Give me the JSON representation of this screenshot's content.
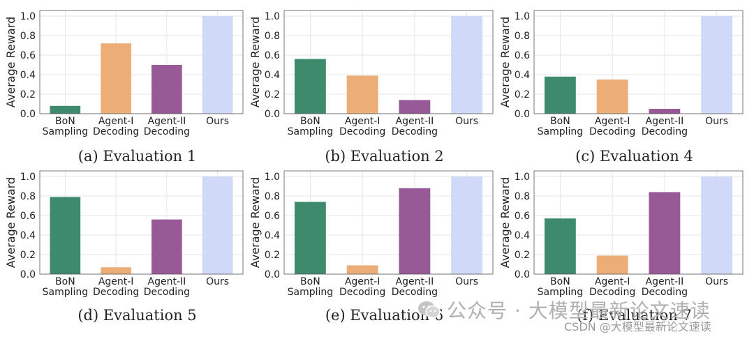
{
  "colors": {
    "bon": "#3d8a6c",
    "agent1": "#ecad76",
    "agent2": "#985a96",
    "ours": "#d1d9f8",
    "grid": "#e6e6e6",
    "axis": "#555555",
    "text": "#222222"
  },
  "chart_data": [
    {
      "type": "bar",
      "caption": "(a) Evaluation 1",
      "ylabel": "Average Reward",
      "ylim": [
        0,
        1.0
      ],
      "yticks": [
        "0.0",
        "0.2",
        "0.4",
        "0.6",
        "0.8",
        "1.0"
      ],
      "categories": [
        [
          "BoN",
          "Sampling"
        ],
        [
          "Agent-I",
          "Decoding"
        ],
        [
          "Agent-II",
          "Decoding"
        ],
        [
          "Ours"
        ]
      ],
      "values": [
        0.08,
        0.72,
        0.5,
        1.0
      ]
    },
    {
      "type": "bar",
      "caption": "(b) Evaluation 2",
      "ylabel": "Average Reward",
      "ylim": [
        0,
        1.0
      ],
      "yticks": [
        "0.0",
        "0.2",
        "0.4",
        "0.6",
        "0.8",
        "1.0"
      ],
      "categories": [
        [
          "BoN",
          "Sampling"
        ],
        [
          "Agent-I",
          "Decoding"
        ],
        [
          "Agent-II",
          "Decoding"
        ],
        [
          "Ours"
        ]
      ],
      "values": [
        0.56,
        0.39,
        0.14,
        1.0
      ]
    },
    {
      "type": "bar",
      "caption": "(c) Evaluation 4",
      "ylabel": "Average Reward",
      "ylim": [
        0,
        1.0
      ],
      "yticks": [
        "0.0",
        "0.2",
        "0.4",
        "0.6",
        "0.8",
        "1.0"
      ],
      "categories": [
        [
          "BoN",
          "Sampling"
        ],
        [
          "Agent-I",
          "Decoding"
        ],
        [
          "Agent-II",
          "Decoding"
        ],
        [
          "Ours"
        ]
      ],
      "values": [
        0.38,
        0.35,
        0.05,
        1.0
      ]
    },
    {
      "type": "bar",
      "caption": "(d) Evaluation 5",
      "ylabel": "Average Reward",
      "ylim": [
        0,
        1.0
      ],
      "yticks": [
        "0.0",
        "0.2",
        "0.4",
        "0.6",
        "0.8",
        "1.0"
      ],
      "categories": [
        [
          "BoN",
          "Sampling"
        ],
        [
          "Agent-I",
          "Decoding"
        ],
        [
          "Agent-II",
          "Decoding"
        ],
        [
          "Ours"
        ]
      ],
      "values": [
        0.79,
        0.07,
        0.56,
        1.0
      ]
    },
    {
      "type": "bar",
      "caption": "(e) Evaluation 6",
      "ylabel": "Average Reward",
      "ylim": [
        0,
        1.0
      ],
      "yticks": [
        "0.0",
        "0.2",
        "0.4",
        "0.6",
        "0.8",
        "1.0"
      ],
      "categories": [
        [
          "BoN",
          "Sampling"
        ],
        [
          "Agent-I",
          "Decoding"
        ],
        [
          "Agent-II",
          "Decoding"
        ],
        [
          "Ours"
        ]
      ],
      "values": [
        0.74,
        0.09,
        0.88,
        1.0
      ]
    },
    {
      "type": "bar",
      "caption": "(f) Evaluation 7",
      "ylabel": "Average Reward",
      "ylim": [
        0,
        1.0
      ],
      "yticks": [
        "0.0",
        "0.2",
        "0.4",
        "0.6",
        "0.8",
        "1.0"
      ],
      "categories": [
        [
          "BoN",
          "Sampling"
        ],
        [
          "Agent-I",
          "Decoding"
        ],
        [
          "Agent-II",
          "Decoding"
        ],
        [
          "Ours"
        ]
      ],
      "values": [
        0.57,
        0.19,
        0.84,
        1.0
      ]
    }
  ],
  "watermark": {
    "channel": "公众号 · 大模型最新论文速读",
    "csdn": "CSDN @大模型最新论文速读"
  }
}
